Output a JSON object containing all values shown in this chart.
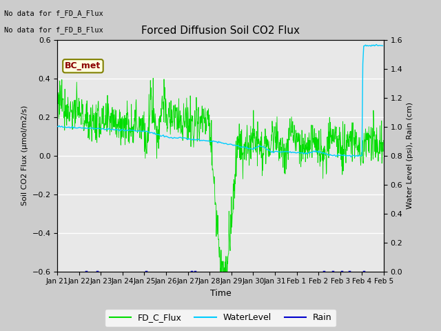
{
  "title": "Forced Diffusion Soil CO2 Flux",
  "xlabel": "Time",
  "ylabel_left": "Soil CO2 Flux (μmol/m2/s)",
  "ylabel_right": "Water Level (psi), Rain (cm)",
  "text_lines": [
    "No data for f_FD_A_Flux",
    "No data for f_FD_B_Flux"
  ],
  "bc_met_label": "BC_met",
  "ylim_left": [
    -0.6,
    0.6
  ],
  "ylim_right": [
    0.0,
    1.6
  ],
  "legend_labels": [
    "FD_C_Flux",
    "WaterLevel",
    "Rain"
  ],
  "flux_color": "#00dd00",
  "water_color": "#00ccff",
  "rain_color": "#0000cc",
  "fig_facecolor": "#cccccc",
  "plot_facecolor": "#e8e8e8",
  "inner_facecolor": "#d8d8d8"
}
